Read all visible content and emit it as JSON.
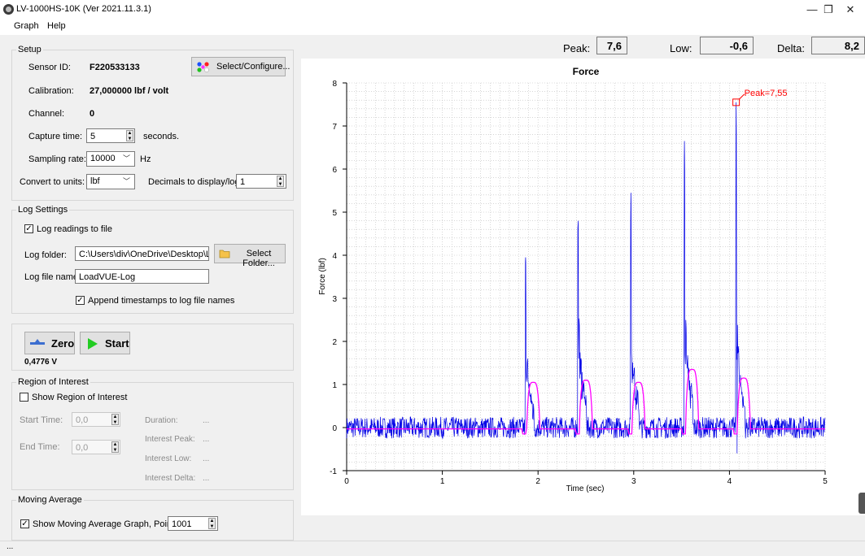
{
  "window": {
    "title": "LV-1000HS-10K (Ver 2021.11.3.1)",
    "minimize": "—",
    "restore": "❐",
    "close": "✕"
  },
  "menu": {
    "items": [
      "Graph",
      "Help"
    ]
  },
  "setup": {
    "title": "Setup",
    "sensor_id_label": "Sensor ID:",
    "sensor_id": "F220533133",
    "select_configure": "Select/Configure...",
    "calibration_label": "Calibration:",
    "calibration": "27,000000 lbf / volt",
    "channel_label": "Channel:",
    "channel": "0",
    "capture_time_label": "Capture time:",
    "capture_time": "5",
    "capture_time_unit": "seconds.",
    "sampling_rate_label": "Sampling rate:",
    "sampling_rate": "10000",
    "sampling_rate_unit": "Hz",
    "convert_units_label": "Convert to units:",
    "convert_units": "lbf",
    "decimals_label": "Decimals to display/log:",
    "decimals": "1"
  },
  "log_settings": {
    "title": "Log Settings",
    "log_to_file_label": "Log readings to file",
    "log_to_file": true,
    "log_folder_label": "Log folder:",
    "log_folder": "C:\\Users\\div\\OneDrive\\Desktop\\LoadV",
    "select_folder": "Select Folder...",
    "log_file_name_label": "Log file name:",
    "log_file_name": "LoadVUE-Log",
    "append_timestamps_label": "Append timestamps to log file names",
    "append_timestamps": true
  },
  "controls": {
    "zero_label": "Zero",
    "start_label": "Start",
    "voltage": "0,4776 V"
  },
  "roi": {
    "title": "Region of Interest",
    "show_label": "Show Region of Interest",
    "show": false,
    "start_time_label": "Start Time:",
    "start_time": "0,0",
    "end_time_label": "End Time:",
    "end_time": "0,0",
    "duration_label": "Duration:",
    "duration": "...",
    "peak_label": "Interest Peak:",
    "peak": "...",
    "low_label": "Interest Low:",
    "low": "...",
    "delta_label": "Interest Delta:",
    "delta": "..."
  },
  "moving_average": {
    "title": "Moving Average",
    "show_label": "Show Moving Average Graph, Points:",
    "show": true,
    "points": "1001"
  },
  "readouts": {
    "peak_label": "Peak:",
    "peak": "7,6",
    "low_label": "Low:",
    "low": "-0,6",
    "delta_label": "Delta:",
    "delta": "8,2"
  },
  "status": {
    "text": "..."
  },
  "colors": {
    "raw_signal": "#0000e6",
    "moving_average": "#ff00ff",
    "peak_marker": "#ff0000",
    "grid": "#000000"
  },
  "chart_data": {
    "type": "line",
    "title": "Force",
    "xlabel": "Time (sec)",
    "ylabel": "Force (lbf)",
    "xlim": [
      0,
      5
    ],
    "ylim": [
      -1,
      8
    ],
    "x_ticks": [
      0,
      1,
      2,
      3,
      4,
      5
    ],
    "y_ticks": [
      -1,
      0,
      1,
      2,
      3,
      4,
      5,
      6,
      7,
      8
    ],
    "grid": true,
    "baseline_noise": [
      -0.25,
      0.25
    ],
    "impacts": [
      {
        "time": 1.87,
        "raw_peak": 3.95,
        "secondary": 2.25,
        "avg_time": 1.95,
        "avg_peak": 1.05
      },
      {
        "time": 2.42,
        "raw_peak": 4.8,
        "secondary": 2.85,
        "avg_time": 2.5,
        "avg_peak": 1.1
      },
      {
        "time": 2.97,
        "raw_peak": 5.45,
        "secondary": 2.75,
        "avg_time": 3.05,
        "avg_peak": 1.05
      },
      {
        "time": 3.53,
        "raw_peak": 6.65,
        "secondary": 3.35,
        "avg_time": 3.61,
        "avg_peak": 1.35
      },
      {
        "time": 4.07,
        "raw_peak": 7.55,
        "secondary": 3.1,
        "avg_time": 4.15,
        "avg_peak": 1.15
      }
    ],
    "low_point": {
      "time": 4.08,
      "value": -0.6
    },
    "annotation": {
      "text": "Peak=7,55",
      "x": 4.07,
      "y": 7.55
    },
    "series": [
      {
        "name": "",
        "role": "raw"
      },
      {
        "name": "",
        "role": "moving_average"
      }
    ]
  }
}
